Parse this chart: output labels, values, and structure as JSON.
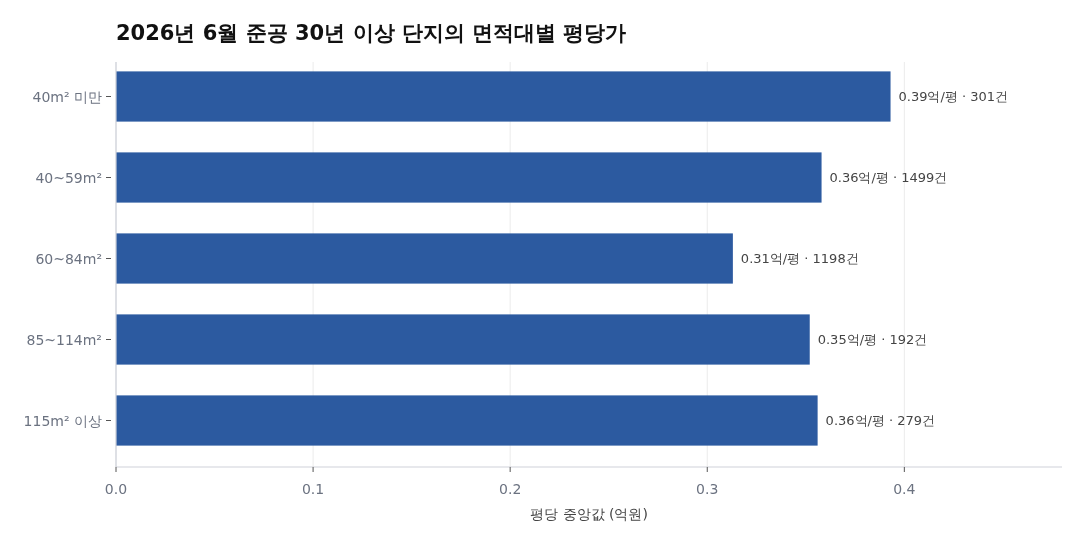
{
  "chart_data": {
    "type": "bar",
    "orientation": "horizontal",
    "title": "2026년 6월 준공 30년 이상 단지의 면적대별 평당가",
    "xlabel": "평당 중앙값 (억원)",
    "categories": [
      "40m² 미만",
      "40~59m²",
      "60~84m²",
      "85~114m²",
      "115m² 이상"
    ],
    "values": [
      0.393,
      0.358,
      0.313,
      0.352,
      0.356
    ],
    "value_labels": [
      "0.39억/평 · 301건",
      "0.36억/평 · 1499건",
      "0.31억/평 · 1198건",
      "0.35억/평 · 192건",
      "0.36억/평 · 279건"
    ],
    "color": "#2c5aa0",
    "xlim": [
      0,
      0.48
    ],
    "xticks": [
      {
        "value": 0,
        "label": "0.0"
      },
      0.1,
      0.2,
      0.3,
      0.4
    ],
    "grid": "x"
  }
}
